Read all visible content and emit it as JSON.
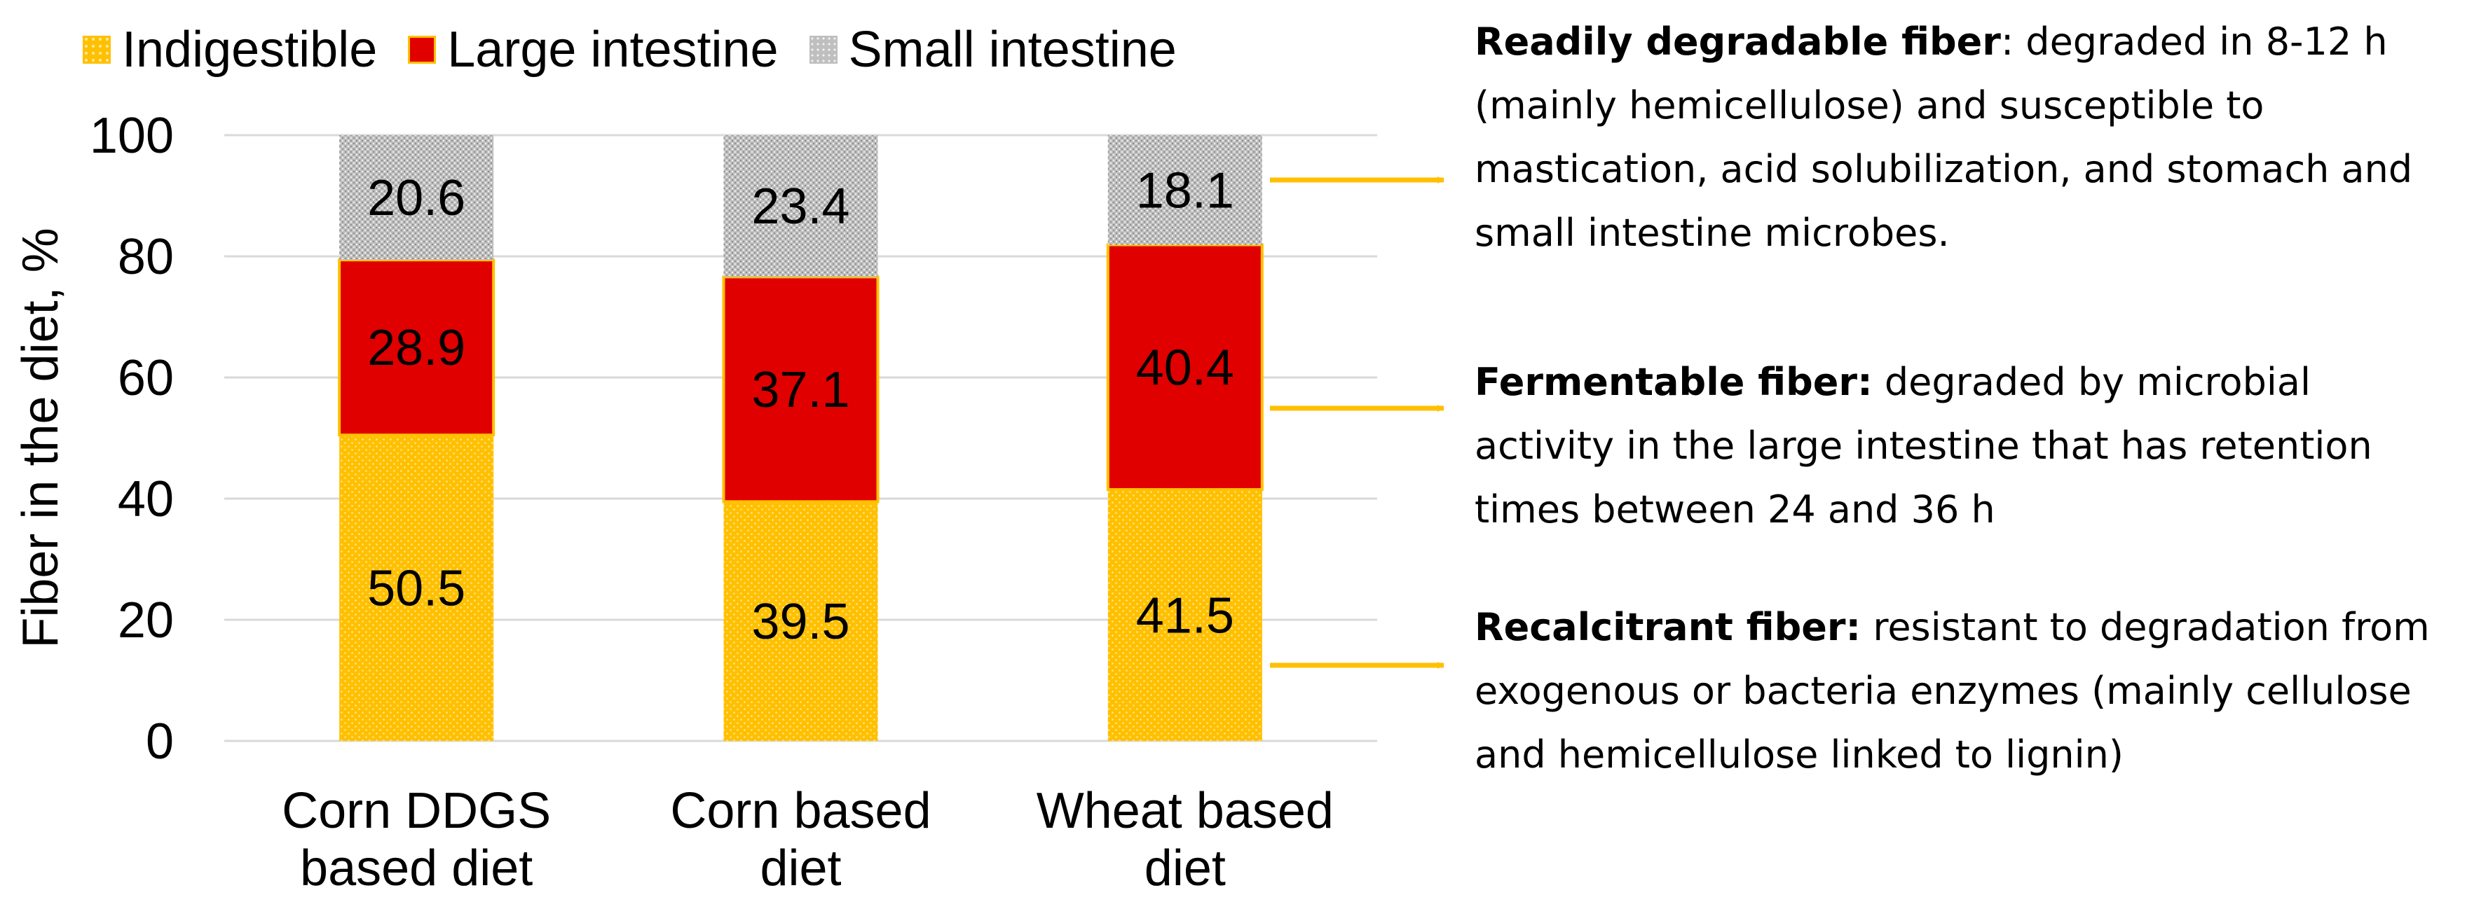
{
  "colors": {
    "indigestible": "#FFC000",
    "large_intestine": "#E00000",
    "small_intestine": "#C8C8C8",
    "arrow": "#FFC000",
    "grid": "#D9D9D9"
  },
  "legend": [
    {
      "label": "Indigestible",
      "series": "indigestible"
    },
    {
      "label": "Large intestine",
      "series": "large_intestine"
    },
    {
      "label": "Small intestine",
      "series": "small_intestine"
    }
  ],
  "chart_data": {
    "type": "bar",
    "stacked": true,
    "title": "",
    "xlabel": "",
    "ylabel": "Fiber in the diet, %",
    "ylim": [
      0,
      100
    ],
    "yticks": [
      0,
      20,
      40,
      60,
      80,
      100
    ],
    "grid": true,
    "legend_position": "top-left",
    "categories": [
      [
        "Corn DDGS",
        "based diet"
      ],
      [
        "Corn based",
        "diet"
      ],
      [
        "Wheat based",
        "diet"
      ]
    ],
    "series": [
      {
        "name": "Indigestible",
        "key": "indigestible",
        "values": [
          50.5,
          39.5,
          41.5
        ],
        "labels": [
          "50.5",
          "39.5",
          "41.5"
        ]
      },
      {
        "name": "Large intestine",
        "key": "large_intestine",
        "values": [
          28.9,
          37.1,
          40.4
        ],
        "labels": [
          "28.9",
          "37.1",
          "40.4"
        ]
      },
      {
        "name": "Small intestine",
        "key": "small_intestine",
        "values": [
          20.6,
          23.4,
          18.1
        ],
        "labels": [
          "20.6",
          "23.4",
          "18.1"
        ]
      }
    ]
  },
  "notes": [
    {
      "title": "Readily degradable fiber",
      "text": ": degraded in 8-12 h (mainly hemicellulose) and susceptible to mastication, acid solubilization, and stomach and small intestine microbes."
    },
    {
      "title": "Fermentable fiber:",
      "text": " degraded by microbial activity in the large intestine that has retention times between 24 and 36 h"
    },
    {
      "title": "Recalcitrant fiber:",
      "text": " resistant to degradation from exogenous or bacteria enzymes (mainly cellulose and hemicellulose linked to lignin)"
    }
  ]
}
